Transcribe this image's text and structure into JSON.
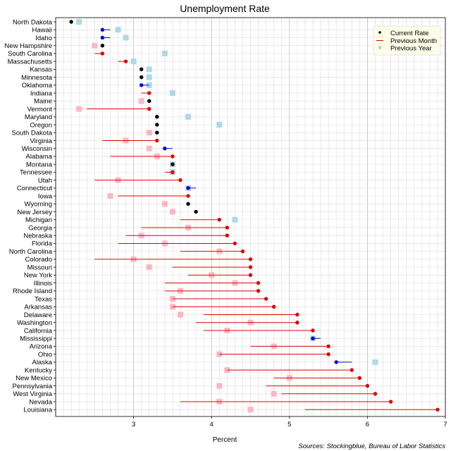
{
  "chart_data": {
    "type": "scatter",
    "title": "Unemployment Rate",
    "xlabel": "Percent",
    "source": "Sources: Stockingblue, Bureau of Labor Statistics",
    "xlim": [
      2.0,
      7.0
    ],
    "xticks": [
      3,
      4,
      5,
      6,
      7
    ],
    "grid": true,
    "legend": {
      "position": "top-right",
      "entries": [
        "Current Rate",
        "Previous Month",
        "Previous Year"
      ]
    },
    "colors": {
      "increase": "#e00000",
      "decrease": "#0000dd",
      "unchanged": "#000000",
      "prev_year_higher": "#add8e6",
      "prev_year_lower": "#ffb6c1"
    },
    "states": [
      {
        "name": "North Dakota",
        "current": 2.2,
        "previous_month": 2.2,
        "previous_year": 2.3
      },
      {
        "name": "Hawaii",
        "current": 2.6,
        "previous_month": 2.7,
        "previous_year": 2.8
      },
      {
        "name": "Idaho",
        "current": 2.6,
        "previous_month": 2.7,
        "previous_year": 2.9
      },
      {
        "name": "New Hampshire",
        "current": 2.6,
        "previous_month": 2.6,
        "previous_year": 2.5
      },
      {
        "name": "South Carolina",
        "current": 2.6,
        "previous_month": 2.5,
        "previous_year": 3.4
      },
      {
        "name": "Massachusetts",
        "current": 2.9,
        "previous_month": 2.8,
        "previous_year": 3.0
      },
      {
        "name": "Kansas",
        "current": 3.1,
        "previous_month": 3.1,
        "previous_year": 3.2
      },
      {
        "name": "Minnesota",
        "current": 3.1,
        "previous_month": 3.1,
        "previous_year": 3.2
      },
      {
        "name": "Oklahoma",
        "current": 3.1,
        "previous_month": 3.2,
        "previous_year": 3.2
      },
      {
        "name": "Indiana",
        "current": 3.2,
        "previous_month": 3.1,
        "previous_year": 3.5
      },
      {
        "name": "Maine",
        "current": 3.2,
        "previous_month": 3.2,
        "previous_year": 3.1
      },
      {
        "name": "Vermont",
        "current": 3.2,
        "previous_month": 2.4,
        "previous_year": 2.3
      },
      {
        "name": "Maryland",
        "current": 3.3,
        "previous_month": 3.3,
        "previous_year": 3.7
      },
      {
        "name": "Oregon",
        "current": 3.3,
        "previous_month": 3.3,
        "previous_year": 4.1
      },
      {
        "name": "South Dakota",
        "current": 3.3,
        "previous_month": 3.3,
        "previous_year": 3.2
      },
      {
        "name": "Virginia",
        "current": 3.3,
        "previous_month": 2.6,
        "previous_year": 2.9
      },
      {
        "name": "Wisconsin",
        "current": 3.4,
        "previous_month": 3.5,
        "previous_year": 3.2
      },
      {
        "name": "Alabama",
        "current": 3.5,
        "previous_month": 2.7,
        "previous_year": 3.3
      },
      {
        "name": "Montana",
        "current": 3.5,
        "previous_month": 3.5,
        "previous_year": 3.5
      },
      {
        "name": "Tennessee",
        "current": 3.5,
        "previous_month": 3.4,
        "previous_year": 3.5
      },
      {
        "name": "Utah",
        "current": 3.6,
        "previous_month": 2.5,
        "previous_year": 2.8
      },
      {
        "name": "Connecticut",
        "current": 3.7,
        "previous_month": 3.8,
        "previous_year": 3.7
      },
      {
        "name": "Iowa",
        "current": 3.7,
        "previous_month": 2.8,
        "previous_year": 2.7
      },
      {
        "name": "Wyoming",
        "current": 3.7,
        "previous_month": 3.7,
        "previous_year": 3.4
      },
      {
        "name": "New Jersey",
        "current": 3.8,
        "previous_month": 3.8,
        "previous_year": 3.5
      },
      {
        "name": "Michigan",
        "current": 4.1,
        "previous_month": 3.6,
        "previous_year": 4.3
      },
      {
        "name": "Georgia",
        "current": 4.2,
        "previous_month": 3.1,
        "previous_year": 3.7
      },
      {
        "name": "Nebraska",
        "current": 4.2,
        "previous_month": 2.9,
        "previous_year": 3.1
      },
      {
        "name": "Florida",
        "current": 4.3,
        "previous_month": 2.8,
        "previous_year": 3.4
      },
      {
        "name": "North Carolina",
        "current": 4.4,
        "previous_month": 3.6,
        "previous_year": 4.1
      },
      {
        "name": "Colorado",
        "current": 4.5,
        "previous_month": 2.5,
        "previous_year": 3.0
      },
      {
        "name": "Missouri",
        "current": 4.5,
        "previous_month": 3.5,
        "previous_year": 3.2
      },
      {
        "name": "New York",
        "current": 4.5,
        "previous_month": 3.7,
        "previous_year": 4.0
      },
      {
        "name": "Illinois",
        "current": 4.6,
        "previous_month": 3.4,
        "previous_year": 4.3
      },
      {
        "name": "Rhode Island",
        "current": 4.6,
        "previous_month": 3.4,
        "previous_year": 3.6
      },
      {
        "name": "Texas",
        "current": 4.7,
        "previous_month": 3.5,
        "previous_year": 3.5
      },
      {
        "name": "Arkansas",
        "current": 4.8,
        "previous_month": 3.5,
        "previous_year": 3.5
      },
      {
        "name": "Delaware",
        "current": 5.1,
        "previous_month": 3.9,
        "previous_year": 3.6
      },
      {
        "name": "Washington",
        "current": 5.1,
        "previous_month": 3.8,
        "previous_year": 4.5
      },
      {
        "name": "California",
        "current": 5.3,
        "previous_month": 3.9,
        "previous_year": 4.2
      },
      {
        "name": "Mississippi",
        "current": 5.3,
        "previous_month": 5.4,
        "previous_year": 5.3
      },
      {
        "name": "Arizona",
        "current": 5.5,
        "previous_month": 4.5,
        "previous_year": 4.8
      },
      {
        "name": "Ohio",
        "current": 5.5,
        "previous_month": 4.1,
        "previous_year": 4.1
      },
      {
        "name": "Alaska",
        "current": 5.6,
        "previous_month": 5.8,
        "previous_year": 6.1
      },
      {
        "name": "Kentucky",
        "current": 5.8,
        "previous_month": 4.2,
        "previous_year": 4.2
      },
      {
        "name": "New Mexico",
        "current": 5.9,
        "previous_month": 4.8,
        "previous_year": 5.0
      },
      {
        "name": "Pennsylvania",
        "current": 6.0,
        "previous_month": 4.7,
        "previous_year": 4.1
      },
      {
        "name": "West Virginia",
        "current": 6.1,
        "previous_month": 4.9,
        "previous_year": 4.8
      },
      {
        "name": "Nevada",
        "current": 6.3,
        "previous_month": 3.6,
        "previous_year": 4.1
      },
      {
        "name": "Louisiana",
        "current": 6.9,
        "previous_month": 5.2,
        "previous_year": 4.5
      }
    ]
  }
}
